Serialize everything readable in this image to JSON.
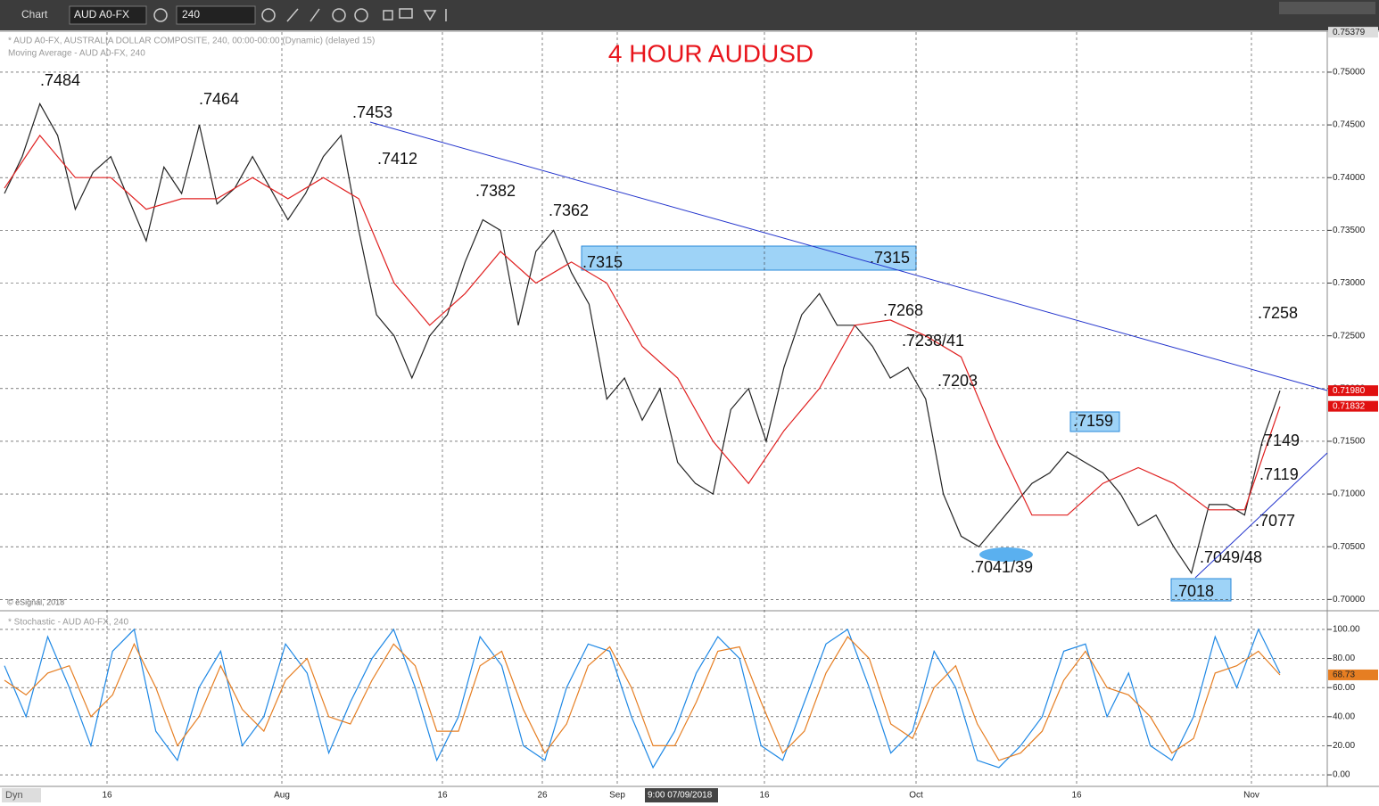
{
  "toolbar": {
    "app": "Chart",
    "symbol": "AUD A0-FX",
    "interval": "240"
  },
  "chart_data": [
    {
      "type": "line",
      "title": "4 HOUR AUDUSD",
      "info": [
        "* AUD A0-FX, AUSTRALIA DOLLAR COMPOSITE, 240, 00:00-00:00 (Dynamic) (delayed 15)",
        "Moving Average - AUD A0-FX, 240"
      ],
      "copyright": "© eSignal, 2018",
      "series": [
        {
          "name": "AUD A0-FX",
          "color": "#222222",
          "values": [
            0.7385,
            0.742,
            0.747,
            0.744,
            0.737,
            0.7405,
            0.742,
            0.738,
            0.734,
            0.741,
            0.7385,
            0.745,
            0.7375,
            0.739,
            0.742,
            0.739,
            0.736,
            0.7385,
            0.742,
            0.744,
            0.735,
            0.727,
            0.725,
            0.721,
            0.725,
            0.727,
            0.732,
            0.736,
            0.735,
            0.726,
            0.733,
            0.735,
            0.731,
            0.728,
            0.719,
            0.721,
            0.717,
            0.72,
            0.713,
            0.711,
            0.71,
            0.718,
            0.72,
            0.715,
            0.722,
            0.727,
            0.729,
            0.726,
            0.726,
            0.724,
            0.721,
            0.722,
            0.719,
            0.71,
            0.706,
            0.705,
            0.707,
            0.709,
            0.711,
            0.712,
            0.714,
            0.713,
            0.712,
            0.71,
            0.707,
            0.708,
            0.705,
            0.7025,
            0.709,
            0.709,
            0.708,
            0.715,
            0.7198
          ]
        },
        {
          "name": "Moving Average",
          "color": "#e02020",
          "values": [
            0.739,
            0.744,
            0.74,
            0.74,
            0.737,
            0.738,
            0.738,
            0.74,
            0.738,
            0.74,
            0.738,
            0.73,
            0.726,
            0.729,
            0.733,
            0.73,
            0.732,
            0.73,
            0.724,
            0.721,
            0.715,
            0.711,
            0.716,
            0.72,
            0.726,
            0.7265,
            0.725,
            0.723,
            0.715,
            0.708,
            0.708,
            0.711,
            0.7125,
            0.711,
            0.7085,
            0.7085,
            0.7183
          ]
        }
      ],
      "last_labels": [
        {
          "value": 0.7198,
          "label": "0.71980"
        },
        {
          "value": 0.71832,
          "label": "0.71832"
        }
      ],
      "top_label": {
        "value": 0.75379,
        "label": "0.75379"
      },
      "ylim": [
        0.6991,
        0.7538
      ],
      "yticks": [
        {
          "value": 0.7,
          "label": "0.70000"
        },
        {
          "value": 0.705,
          "label": "0.70500"
        },
        {
          "value": 0.71,
          "label": "0.71000"
        },
        {
          "value": 0.715,
          "label": "0.71500"
        },
        {
          "value": 0.72,
          "label": "0.72000"
        },
        {
          "value": 0.725,
          "label": "0.72500"
        },
        {
          "value": 0.73,
          "label": "0.73000"
        },
        {
          "value": 0.735,
          "label": "0.73500"
        },
        {
          "value": 0.74,
          "label": "0.74000"
        },
        {
          "value": 0.745,
          "label": "0.74500"
        },
        {
          "value": 0.75,
          "label": "0.75000"
        }
      ],
      "annotations": [
        ".7484",
        ".7464",
        ".7453",
        ".7412",
        ".7382",
        ".7362",
        ".7315",
        ".7315",
        ".7268",
        ".7238/41",
        ".7203",
        ".7159",
        ".7258",
        ".7149",
        ".7119",
        ".7077",
        ".7049/48",
        ".7041/39",
        ".7018"
      ],
      "grid": true
    },
    {
      "type": "line",
      "title": "* Stochastic - AUD A0-FX, 240",
      "series": [
        {
          "name": "%K",
          "color": "#1e88e5",
          "values": [
            75,
            40,
            95,
            60,
            20,
            85,
            100,
            30,
            10,
            60,
            85,
            20,
            40,
            90,
            70,
            15,
            50,
            80,
            100,
            60,
            10,
            40,
            95,
            75,
            20,
            10,
            60,
            90,
            85,
            40,
            5,
            30,
            70,
            95,
            80,
            20,
            10,
            50,
            90,
            100,
            60,
            15,
            30,
            85,
            60,
            10,
            5,
            20,
            40,
            85,
            90,
            40,
            70,
            20,
            10,
            40,
            95,
            60,
            100,
            70
          ]
        },
        {
          "name": "%D",
          "color": "#e67e22",
          "values": [
            65,
            55,
            70,
            75,
            40,
            55,
            90,
            60,
            20,
            40,
            75,
            45,
            30,
            65,
            80,
            40,
            35,
            65,
            90,
            75,
            30,
            30,
            75,
            85,
            45,
            15,
            35,
            75,
            88,
            60,
            20,
            20,
            50,
            85,
            88,
            50,
            15,
            30,
            70,
            95,
            80,
            35,
            25,
            60,
            75,
            35,
            10,
            15,
            30,
            65,
            85,
            60,
            55,
            40,
            15,
            25,
            70,
            75,
            85,
            68.73
          ]
        }
      ],
      "last_label": {
        "value": 68.73,
        "label": "68.73"
      },
      "ylim": [
        -6.7,
        111
      ],
      "yticks": [
        {
          "value": 0,
          "label": "0.00"
        },
        {
          "value": 20,
          "label": "20.00"
        },
        {
          "value": 40,
          "label": "40.00"
        },
        {
          "value": 60,
          "label": "60.00"
        },
        {
          "value": 80,
          "label": "80.00"
        },
        {
          "value": 100,
          "label": "100.00"
        }
      ],
      "grid": true
    }
  ],
  "x_axis": {
    "labels": [
      "16",
      "Aug",
      "16",
      "26",
      "Sep",
      "16",
      "Oct",
      "16",
      "Nov"
    ],
    "cursor": "9:00 07/09/2018",
    "mode": "Dyn"
  }
}
